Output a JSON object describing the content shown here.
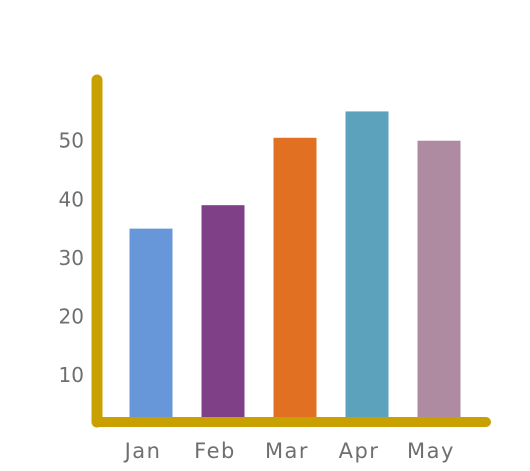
{
  "chart_data": {
    "type": "bar",
    "categories": [
      "Jan",
      "Feb",
      "Mar",
      "Apr",
      "May"
    ],
    "values": [
      35,
      39,
      50.5,
      55,
      50
    ],
    "colors": [
      "#5b8ed6",
      "#74307d",
      "#e06410",
      "#4f9ab6",
      "#a8819a"
    ],
    "axis_color": "#c8a000",
    "tick_label_color": "#6f6f6f",
    "yticks": [
      10,
      20,
      30,
      40,
      50
    ],
    "ylim": [
      2,
      59
    ],
    "title": "",
    "xlabel": "",
    "ylabel": "",
    "grid": false,
    "legend": "none"
  }
}
